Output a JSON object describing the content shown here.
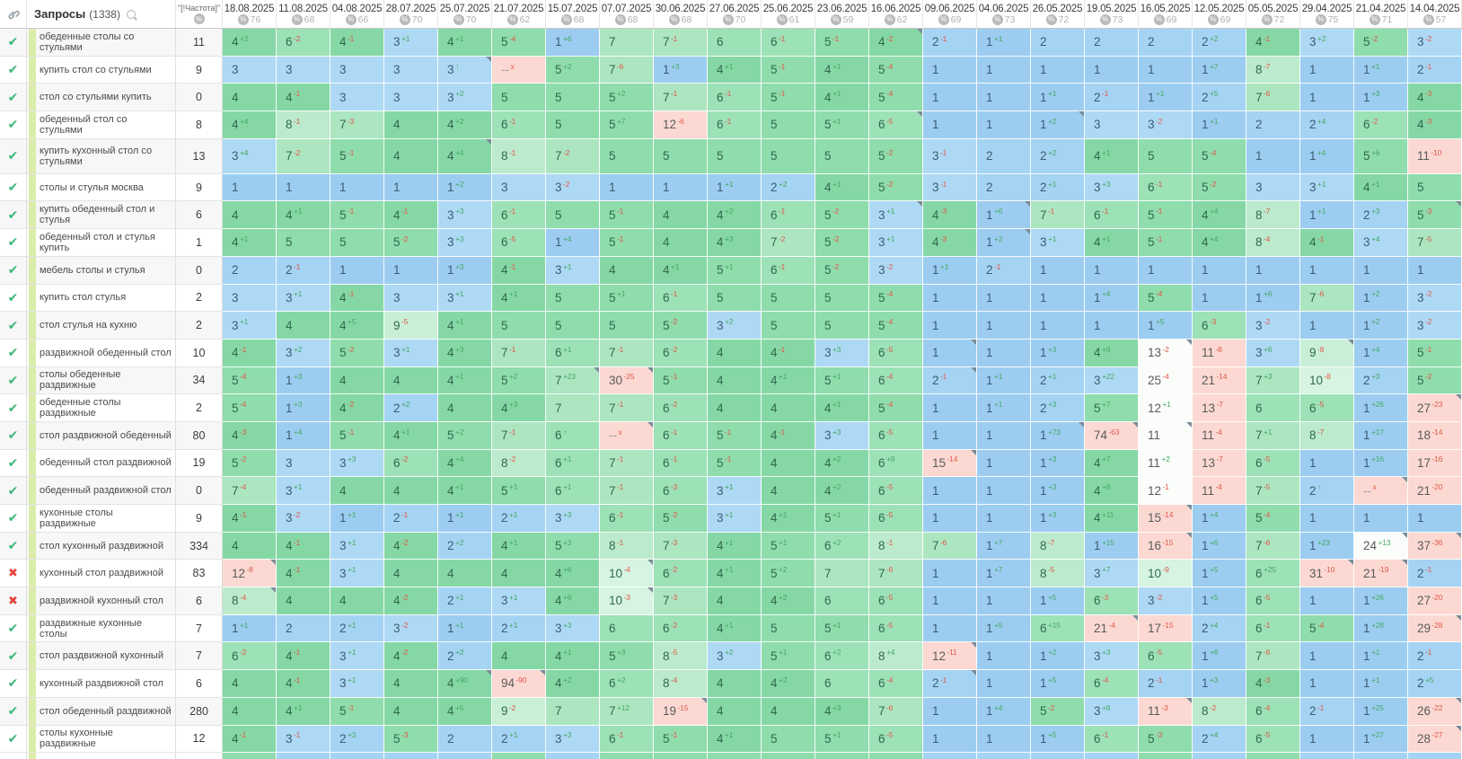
{
  "header": {
    "queries_label": "Запросы",
    "queries_count": "(1338)",
    "frequency_label": "\"[!Частота]\"",
    "percent_icon_glyph": "%",
    "dates": [
      {
        "date": "18.08.2025",
        "visibility": "76"
      },
      {
        "date": "11.08.2025",
        "visibility": "68"
      },
      {
        "date": "04.08.2025",
        "visibility": "66"
      },
      {
        "date": "28.07.2025",
        "visibility": "70"
      },
      {
        "date": "25.07.2025",
        "visibility": "70"
      },
      {
        "date": "21.07.2025",
        "visibility": "62"
      },
      {
        "date": "15.07.2025",
        "visibility": "68"
      },
      {
        "date": "07.07.2025",
        "visibility": "68"
      },
      {
        "date": "30.06.2025",
        "visibility": "68"
      },
      {
        "date": "27.06.2025",
        "visibility": "70"
      },
      {
        "date": "25.06.2025",
        "visibility": "61"
      },
      {
        "date": "23.06.2025",
        "visibility": "59"
      },
      {
        "date": "16.06.2025",
        "visibility": "62"
      },
      {
        "date": "09.06.2025",
        "visibility": "69"
      },
      {
        "date": "04.06.2025",
        "visibility": "73"
      },
      {
        "date": "26.05.2025",
        "visibility": "72"
      },
      {
        "date": "19.05.2025",
        "visibility": "73"
      },
      {
        "date": "16.05.2025",
        "visibility": "69"
      },
      {
        "date": "12.05.2025",
        "visibility": "69"
      },
      {
        "date": "05.05.2025",
        "visibility": "72"
      },
      {
        "date": "29.04.2025",
        "visibility": "75"
      },
      {
        "date": "21.04.2025",
        "visibility": "71"
      },
      {
        "date": "14.04.2025",
        "visibility": "57"
      }
    ]
  },
  "palette": {
    "blue1": "#9ccdf1",
    "blue2": "#a5d3f3",
    "blue3": "#aed9f5",
    "green4": "#85d8a5",
    "green5": "#8fdcac",
    "green6": "#9de1b7",
    "green7": "#ace6c1",
    "green8": "#bbebcc",
    "green9": "#c9f0d7",
    "green10": "#d6f4e1",
    "white_cell": "#fbfdfa",
    "pink_cell": "#fbd9d2",
    "delta_up": "#44a964",
    "delta_down": "#e0584a",
    "check_green": "#3cb878",
    "cross_red": "#e6443d",
    "group_stripe": "#dcecaa"
  },
  "rows": [
    {
      "status": "check",
      "keyword": "обеденные столы со стульями",
      "frequency": "11",
      "positions": [
        "4",
        "6",
        "4",
        "3",
        "4",
        "5",
        "1",
        "7",
        "7",
        "6",
        "6",
        "5",
        "4",
        "2",
        "1",
        "2",
        "2",
        "2",
        "2",
        "4",
        "3",
        "5",
        "3"
      ],
      "last_delta": "-2"
    },
    {
      "status": "check",
      "keyword": "купить стол со стульями",
      "frequency": "9",
      "positions": [
        "3",
        "3",
        "3",
        "3",
        "3",
        "--",
        "5",
        "7",
        "1",
        "4",
        "5",
        "4",
        "5",
        "1",
        "1",
        "1",
        "1",
        "1",
        "1",
        "8",
        "1",
        "1",
        "2"
      ],
      "last_delta": "-1"
    },
    {
      "status": "check",
      "keyword": "стол со стульями купить",
      "frequency": "0",
      "positions": [
        "4",
        "4",
        "3",
        "3",
        "3",
        "5",
        "5",
        "5",
        "7",
        "6",
        "5",
        "4",
        "5",
        "1",
        "1",
        "1",
        "2",
        "1",
        "2",
        "7",
        "1",
        "1",
        "4"
      ],
      "last_delta": "-3"
    },
    {
      "status": "check",
      "keyword": "обеденный стол со стульями",
      "frequency": "8",
      "positions": [
        "4",
        "8",
        "7",
        "4",
        "4",
        "6",
        "5",
        "5",
        "12",
        "6",
        "5",
        "5",
        "6",
        "1",
        "1",
        "1",
        "3",
        "3",
        "1",
        "2",
        "2",
        "6",
        "4"
      ],
      "last_delta": "-3"
    },
    {
      "status": "check",
      "keyword": "купить кухонный стол со стульями",
      "frequency": "13",
      "positions": [
        "3",
        "7",
        "5",
        "4",
        "4",
        "8",
        "7",
        "5",
        "5",
        "5",
        "5",
        "5",
        "5",
        "3",
        "2",
        "2",
        "4",
        "5",
        "5",
        "1",
        "1",
        "5",
        "11"
      ],
      "last_delta": "-10"
    },
    {
      "status": "check",
      "keyword": "столы и стулья москва",
      "frequency": "9",
      "positions": [
        "1",
        "1",
        "1",
        "1",
        "1",
        "3",
        "3",
        "1",
        "1",
        "1",
        "2",
        "4",
        "5",
        "3",
        "2",
        "2",
        "3",
        "6",
        "5",
        "3",
        "3",
        "4",
        "5"
      ],
      "last_delta": ""
    },
    {
      "status": "check",
      "keyword": "купить обеденный стол и стулья",
      "frequency": "6",
      "positions": [
        "4",
        "4",
        "5",
        "4",
        "3",
        "6",
        "5",
        "5",
        "4",
        "4",
        "6",
        "5",
        "3",
        "4",
        "1",
        "7",
        "6",
        "5",
        "4",
        "8",
        "1",
        "2",
        "5"
      ],
      "last_delta": "-3"
    },
    {
      "status": "check",
      "keyword": "обеденный стол и стулья купить",
      "frequency": "1",
      "positions": [
        "4",
        "5",
        "5",
        "5",
        "3",
        "6",
        "1",
        "5",
        "4",
        "4",
        "7",
        "5",
        "3",
        "4",
        "1",
        "3",
        "4",
        "5",
        "4",
        "8",
        "4",
        "3",
        "7"
      ],
      "last_delta": "-5"
    },
    {
      "status": "check",
      "keyword": "мебель столы и стулья",
      "frequency": "0",
      "positions": [
        "2",
        "2",
        "1",
        "1",
        "1",
        "4",
        "3",
        "4",
        "4",
        "5",
        "6",
        "5",
        "3",
        "1",
        "2",
        "1",
        "1",
        "1",
        "1",
        "1",
        "1",
        "1",
        "1"
      ],
      "last_delta": ""
    },
    {
      "status": "check",
      "keyword": "купить стол стулья",
      "frequency": "2",
      "positions": [
        "3",
        "3",
        "4",
        "3",
        "3",
        "4",
        "5",
        "5",
        "6",
        "5",
        "5",
        "5",
        "5",
        "1",
        "1",
        "1",
        "1",
        "5",
        "1",
        "1",
        "7",
        "1",
        "3"
      ],
      "last_delta": "-2"
    },
    {
      "status": "check",
      "keyword": "стол стулья на кухню",
      "frequency": "2",
      "positions": [
        "3",
        "4",
        "4",
        "9",
        "4",
        "5",
        "5",
        "5",
        "5",
        "3",
        "5",
        "5",
        "5",
        "1",
        "1",
        "1",
        "1",
        "1",
        "6",
        "3",
        "1",
        "1",
        "3"
      ],
      "last_delta": "-2"
    },
    {
      "status": "check",
      "keyword": "раздвижной обеденный стол",
      "frequency": "10",
      "positions": [
        "4",
        "3",
        "5",
        "3",
        "4",
        "7",
        "6",
        "7",
        "6",
        "4",
        "4",
        "3",
        "6",
        "1",
        "1",
        "1",
        "4",
        "13",
        "11",
        "3",
        "9",
        "1",
        "5"
      ],
      "last_delta": "-1"
    },
    {
      "status": "check",
      "keyword": "столы обеденные раздвижные",
      "frequency": "34",
      "positions": [
        "5",
        "1",
        "4",
        "4",
        "4",
        "5",
        "7",
        "30",
        "5",
        "4",
        "4",
        "5",
        "6",
        "2",
        "1",
        "2",
        "3",
        "25",
        "21",
        "7",
        "10",
        "2",
        "5"
      ],
      "last_delta": "-2"
    },
    {
      "status": "check",
      "keyword": "обеденные столы раздвижные",
      "frequency": "2",
      "positions": [
        "5",
        "1",
        "4",
        "2",
        "4",
        "4",
        "7",
        "7",
        "6",
        "4",
        "4",
        "4",
        "5",
        "1",
        "1",
        "2",
        "5",
        "12",
        "13",
        "6",
        "6",
        "1",
        "27"
      ],
      "last_delta": "-23"
    },
    {
      "status": "check",
      "keyword": "стол раздвижной обеденный",
      "frequency": "80",
      "positions": [
        "4",
        "1",
        "5",
        "4",
        "5",
        "7",
        "6",
        "--",
        "6",
        "5",
        "4",
        "3",
        "6",
        "1",
        "1",
        "1",
        "74",
        "11",
        "11",
        "7",
        "8",
        "1",
        "18"
      ],
      "last_delta": "-14"
    },
    {
      "status": "check",
      "keyword": "обеденный стол раздвижной",
      "frequency": "19",
      "positions": [
        "5",
        "3",
        "3",
        "6",
        "4",
        "8",
        "6",
        "7",
        "6",
        "5",
        "4",
        "4",
        "6",
        "15",
        "1",
        "1",
        "4",
        "11",
        "13",
        "6",
        "1",
        "1",
        "17"
      ],
      "last_delta": "-16"
    },
    {
      "status": "check",
      "keyword": "обеденный раздвижной стол",
      "frequency": "0",
      "positions": [
        "7",
        "3",
        "4",
        "4",
        "4",
        "5",
        "6",
        "7",
        "6",
        "3",
        "4",
        "4",
        "6",
        "1",
        "1",
        "1",
        "4",
        "12",
        "11",
        "7",
        "2",
        "--",
        "21"
      ],
      "last_delta": "-20"
    },
    {
      "status": "check",
      "keyword": "кухонные столы раздвижные",
      "frequency": "9",
      "positions": [
        "4",
        "3",
        "1",
        "2",
        "1",
        "2",
        "3",
        "6",
        "5",
        "3",
        "4",
        "5",
        "6",
        "1",
        "1",
        "1",
        "4",
        "15",
        "1",
        "5",
        "1",
        "1",
        "1"
      ],
      "last_delta": ""
    },
    {
      "status": "check",
      "keyword": "стол кухонный раздвижной",
      "frequency": "334",
      "positions": [
        "4",
        "4",
        "3",
        "4",
        "2",
        "4",
        "5",
        "8",
        "7",
        "4",
        "5",
        "6",
        "8",
        "7",
        "1",
        "8",
        "1",
        "16",
        "1",
        "7",
        "1",
        "24",
        "37"
      ],
      "last_delta": "-36"
    },
    {
      "status": "cross",
      "keyword": "кухонный стол раздвижной",
      "frequency": "83",
      "positions": [
        "12",
        "4",
        "3",
        "4",
        "4",
        "4",
        "4",
        "10",
        "6",
        "4",
        "5",
        "7",
        "7",
        "1",
        "1",
        "8",
        "3",
        "10",
        "1",
        "6",
        "31",
        "21",
        "2"
      ],
      "last_delta": "-1"
    },
    {
      "status": "cross",
      "keyword": "раздвижной кухонный стол",
      "frequency": "6",
      "positions": [
        "8",
        "4",
        "4",
        "4",
        "2",
        "3",
        "4",
        "10",
        "7",
        "4",
        "4",
        "6",
        "6",
        "1",
        "1",
        "1",
        "6",
        "3",
        "1",
        "6",
        "1",
        "1",
        "27"
      ],
      "last_delta": "-20"
    },
    {
      "status": "check",
      "keyword": "раздвижные кухонные столы",
      "frequency": "7",
      "positions": [
        "1",
        "2",
        "2",
        "3",
        "1",
        "2",
        "3",
        "6",
        "6",
        "4",
        "5",
        "5",
        "6",
        "1",
        "1",
        "6",
        "21",
        "17",
        "2",
        "6",
        "5",
        "1",
        "29"
      ],
      "last_delta": "-28"
    },
    {
      "status": "check",
      "keyword": "стол раздвижной кухонный",
      "frequency": "7",
      "positions": [
        "6",
        "4",
        "3",
        "4",
        "2",
        "4",
        "4",
        "5",
        "8",
        "3",
        "5",
        "6",
        "8",
        "12",
        "1",
        "1",
        "3",
        "6",
        "1",
        "7",
        "1",
        "1",
        "2"
      ],
      "last_delta": "-1"
    },
    {
      "status": "check",
      "keyword": "кухонный раздвижной стол",
      "frequency": "6",
      "positions": [
        "4",
        "4",
        "3",
        "4",
        "4",
        "94",
        "4",
        "6",
        "8",
        "4",
        "4",
        "6",
        "6",
        "2",
        "1",
        "1",
        "6",
        "2",
        "1",
        "4",
        "1",
        "1",
        "2"
      ],
      "last_delta": "+5"
    },
    {
      "status": "check",
      "keyword": "стол обеденный раздвижной",
      "frequency": "280",
      "positions": [
        "4",
        "4",
        "5",
        "4",
        "4",
        "9",
        "7",
        "7",
        "19",
        "4",
        "4",
        "4",
        "7",
        "1",
        "1",
        "5",
        "3",
        "11",
        "8",
        "6",
        "2",
        "1",
        "26"
      ],
      "last_delta": "-22"
    },
    {
      "status": "check",
      "keyword": "столы кухонные раздвижные",
      "frequency": "12",
      "positions": [
        "4",
        "3",
        "2",
        "5",
        "2",
        "2",
        "3",
        "6",
        "5",
        "4",
        "5",
        "5",
        "6",
        "1",
        "1",
        "1",
        "6",
        "5",
        "2",
        "6",
        "1",
        "1",
        "28"
      ],
      "last_delta": "-27"
    }
  ],
  "white_cells": [
    [
      12,
      18
    ],
    [
      13,
      18
    ],
    [
      14,
      18
    ],
    [
      15,
      18
    ],
    [
      16,
      18
    ],
    [
      17,
      18
    ],
    [
      19,
      22
    ]
  ],
  "flag_cells": [
    [
      1,
      13
    ],
    [
      2,
      5
    ],
    [
      4,
      13
    ],
    [
      4,
      16
    ],
    [
      5,
      5
    ],
    [
      7,
      13
    ],
    [
      7,
      15
    ],
    [
      7,
      23
    ],
    [
      8,
      15
    ],
    [
      12,
      14
    ],
    [
      12,
      18
    ],
    [
      12,
      21
    ],
    [
      13,
      7
    ],
    [
      13,
      8
    ],
    [
      13,
      14
    ],
    [
      14,
      23
    ],
    [
      15,
      8
    ],
    [
      15,
      16
    ],
    [
      15,
      17
    ],
    [
      15,
      18
    ],
    [
      16,
      14
    ],
    [
      17,
      22
    ],
    [
      18,
      18
    ],
    [
      19,
      18
    ],
    [
      19,
      22
    ],
    [
      19,
      23
    ],
    [
      20,
      1
    ],
    [
      20,
      8
    ],
    [
      20,
      21
    ],
    [
      20,
      22
    ],
    [
      21,
      1
    ],
    [
      21,
      8
    ],
    [
      22,
      17
    ],
    [
      22,
      23
    ],
    [
      23,
      14
    ],
    [
      24,
      5
    ],
    [
      24,
      6
    ],
    [
      24,
      14
    ],
    [
      25,
      9
    ],
    [
      25,
      18
    ],
    [
      25,
      23
    ],
    [
      26,
      23
    ]
  ],
  "partial_row_colors": [
    "g",
    "b",
    "b",
    "b",
    "b",
    "g",
    "b",
    "g",
    "g",
    "g",
    "g",
    "g",
    "g",
    "b",
    "b",
    "b",
    "b",
    "g",
    "b",
    "g",
    "b",
    "b",
    "b"
  ],
  "status_glyphs": {
    "check": "✔",
    "cross": "✖"
  },
  "delta_glyphs": {
    "returned": "↑",
    "dropped_out": "x"
  }
}
